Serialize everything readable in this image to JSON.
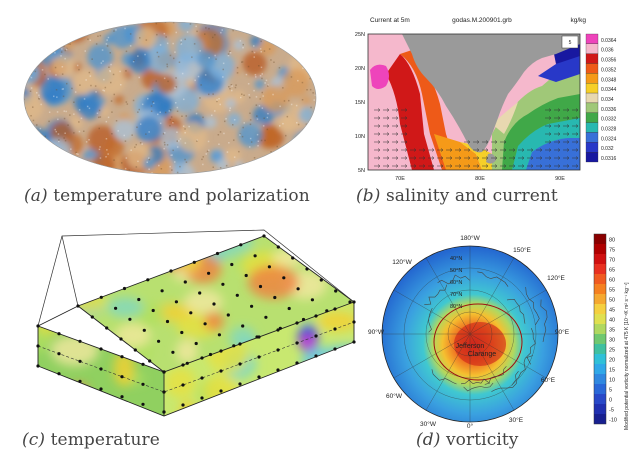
{
  "figure": {
    "panels": [
      {
        "id": "a",
        "label": "(a)",
        "caption": "temperature and polarization"
      },
      {
        "id": "b",
        "label": "(b)",
        "caption": "salinity and current"
      },
      {
        "id": "c",
        "label": "(c)",
        "caption": "temperature"
      },
      {
        "id": "d",
        "label": "(d)",
        "caption": "vorticity"
      }
    ]
  },
  "panel_b": {
    "title_left": "Current at 5m",
    "title_center": "godas.M.200901.grb",
    "units": "kg/kg",
    "lat_ticks": [
      "25N",
      "20N",
      "15N",
      "10N",
      "5N"
    ],
    "lon_ticks": [
      "70E",
      "80E",
      "90E"
    ],
    "colorbar_ticks": [
      "0.0364",
      "0.036",
      "0.0356",
      "0.0352",
      "0.0348",
      "0.0344",
      "0.034",
      "0.0336",
      "0.0332",
      "0.0328",
      "0.0324",
      "0.032",
      "0.0316"
    ],
    "colorbar_colors": [
      "#ee44bb",
      "#f5b8cc",
      "#d01818",
      "#ee5a18",
      "#f59a18",
      "#f6cf28",
      "#e8d8b0",
      "#a0c878",
      "#40a848",
      "#28b8b0",
      "#3870d8",
      "#2838c8",
      "#1818a0"
    ],
    "legend_box": "5"
  },
  "panel_d": {
    "lon_labels": [
      "180°W",
      "150°E",
      "120°W",
      "90°W",
      "60°W",
      "30°W",
      "0°",
      "30°E",
      "60°E",
      "120°E",
      "90°E"
    ],
    "lat_labels": [
      "40°N",
      "50°N",
      "60°N",
      "70°N",
      "80°N"
    ],
    "center_label": "Jefferson",
    "center_label_2": "Clarange",
    "colorbar_ticks": [
      "80",
      "75",
      "70",
      "65",
      "60",
      "55",
      "50",
      "45",
      "40",
      "35",
      "30",
      "25",
      "20",
      "15",
      "10",
      "5",
      "0",
      "-5",
      "-10"
    ],
    "colorbar_label": "Modified potential vorticity normalized at 475 K [10⁻⁶K m² s⁻¹ kg⁻¹]"
  },
  "colors": {
    "caption": "#444444",
    "land": "#9a9a9a"
  }
}
